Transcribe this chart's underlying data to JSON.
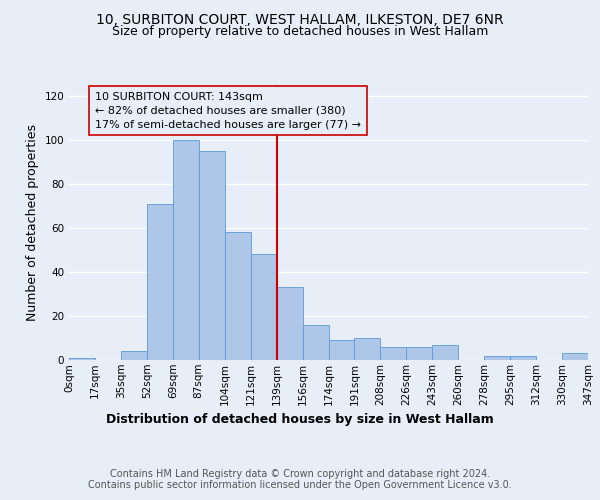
{
  "title_line1": "10, SURBITON COURT, WEST HALLAM, ILKESTON, DE7 6NR",
  "title_line2": "Size of property relative to detached houses in West Hallam",
  "xlabel": "Distribution of detached houses by size in West Hallam",
  "ylabel": "Number of detached properties",
  "footer_line1": "Contains HM Land Registry data © Crown copyright and database right 2024.",
  "footer_line2": "Contains public sector information licensed under the Open Government Licence v3.0.",
  "annotation_line1": "10 SURBITON COURT: 143sqm",
  "annotation_line2": "← 82% of detached houses are smaller (380)",
  "annotation_line3": "17% of semi-detached houses are larger (77) →",
  "bin_labels": [
    "0sqm",
    "17sqm",
    "35sqm",
    "52sqm",
    "69sqm",
    "87sqm",
    "104sqm",
    "121sqm",
    "139sqm",
    "156sqm",
    "174sqm",
    "191sqm",
    "208sqm",
    "226sqm",
    "243sqm",
    "260sqm",
    "278sqm",
    "295sqm",
    "312sqm",
    "330sqm",
    "347sqm"
  ],
  "bar_values": [
    1,
    0,
    4,
    71,
    100,
    95,
    58,
    48,
    33,
    16,
    9,
    10,
    6,
    6,
    7,
    0,
    2,
    2,
    0,
    3
  ],
  "bar_color": "#aec6e8",
  "bar_edge_color": "#5b9bd5",
  "vline_color": "#cc0000",
  "annotation_box_edge_color": "#cc0000",
  "ylim": [
    0,
    125
  ],
  "yticks": [
    0,
    20,
    40,
    60,
    80,
    100,
    120
  ],
  "bg_color": "#e8eef7",
  "title_fontsize": 10,
  "subtitle_fontsize": 9,
  "axis_label_fontsize": 9,
  "tick_fontsize": 7.5,
  "annotation_fontsize": 8,
  "footer_fontsize": 7
}
